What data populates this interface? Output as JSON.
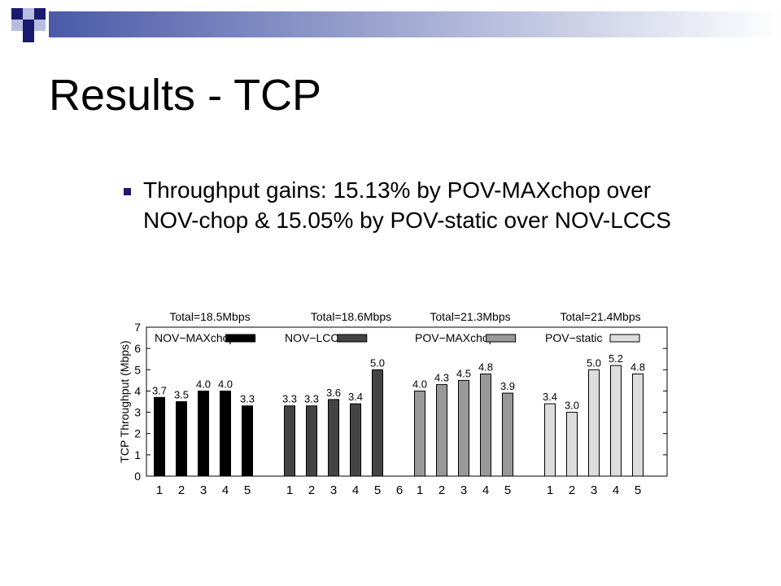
{
  "slide": {
    "title": "Results - TCP",
    "bullet": "Throughput gains: 15.13% by POV-MAXchop over NOV-chop & 15.05% by POV-static over NOV-LCCS"
  },
  "colors": {
    "header_gradient_start": "#4a5aa8",
    "header_gradient_end": "#ffffff",
    "deco_dark": "#1a1a6e",
    "deco_light": "#b8bde0",
    "bullet": "#1a1a6e"
  },
  "chart_data": {
    "type": "bar",
    "ylabel": "TCP Throughput (Mbps)",
    "ylim": [
      0,
      7
    ],
    "yticks": [
      0,
      1,
      2,
      3,
      4,
      5,
      6,
      7
    ],
    "grid": false,
    "groups": [
      {
        "name": "NOV−MAXchop",
        "total": "Total=18.5Mbps",
        "color": "#000000",
        "categories": [
          "1",
          "2",
          "3",
          "4",
          "5"
        ],
        "values": [
          3.7,
          3.5,
          4.0,
          4.0,
          3.3
        ],
        "labels": [
          "3.7",
          "3.5",
          "4.0",
          "4.0",
          "3.3"
        ]
      },
      {
        "name": "NOV−LCCS",
        "total": "Total=18.6Mbps",
        "color": "#444444",
        "categories": [
          "1",
          "2",
          "3",
          "4",
          "5",
          "6"
        ],
        "values": [
          3.3,
          3.3,
          3.6,
          3.4,
          5.0,
          null
        ],
        "labels": [
          "3.3",
          "3.3",
          "3.6",
          "3.4",
          "5.0",
          ""
        ]
      },
      {
        "name": "POV−MAXchop",
        "total": "Total=21.3Mbps",
        "color": "#999999",
        "categories": [
          "1",
          "2",
          "3",
          "4",
          "5"
        ],
        "values": [
          4.0,
          4.3,
          4.5,
          4.8,
          3.9
        ],
        "labels": [
          "4.0",
          "4.3",
          "4.5",
          "4.8",
          "3.9"
        ]
      },
      {
        "name": "POV−static",
        "total": "Total=21.4Mbps",
        "color": "#dddddd",
        "categories": [
          "1",
          "2",
          "3",
          "4",
          "5"
        ],
        "values": [
          3.4,
          3.0,
          5.0,
          5.2,
          4.8
        ],
        "labels": [
          "3.4",
          "3.0",
          "5.0",
          "5.2",
          "4.8"
        ]
      }
    ]
  }
}
